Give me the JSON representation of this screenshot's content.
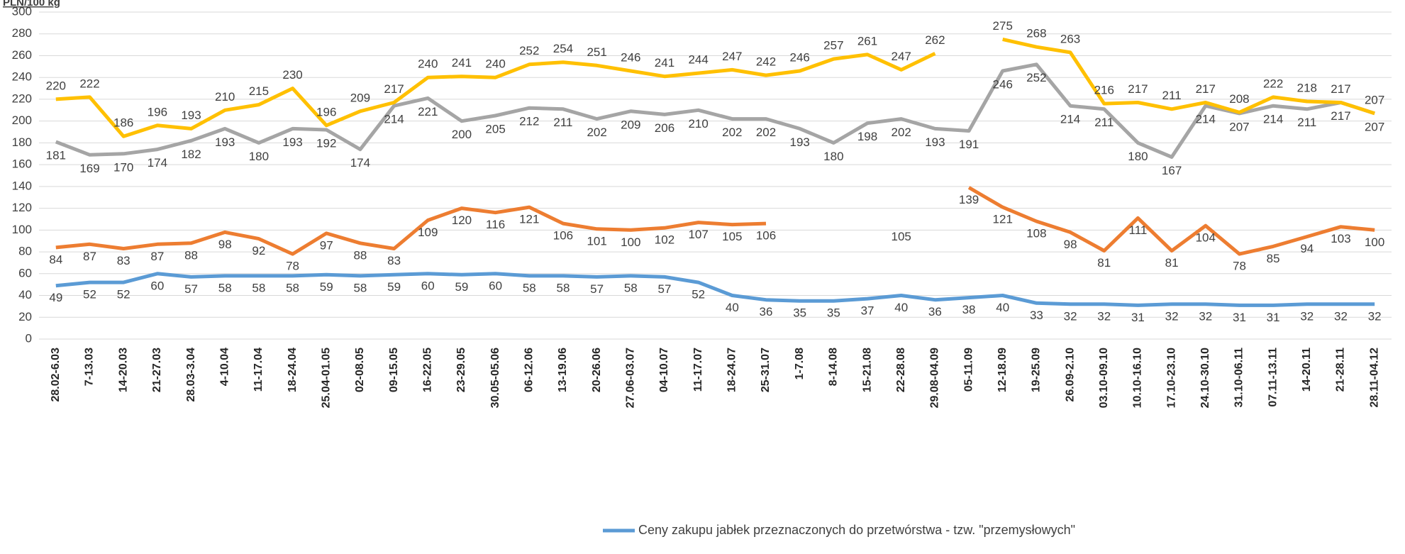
{
  "chart_data": {
    "type": "line",
    "y_label": "PLN/100 kg",
    "categories": [
      "28.02-6.03",
      "7-13.03",
      "14-20.03",
      "21-27.03",
      "28.03-3.04",
      "4-10.04",
      "11-17.04",
      "18-24.04",
      "25.04-01.05",
      "02-08.05",
      "09-15.05",
      "16-22.05",
      "23-29.05",
      "30.05-05.06",
      "06-12.06",
      "13-19.06",
      "20-26.06",
      "27.06-03.07",
      "04-10.07",
      "11-17.07",
      "18-24.07",
      "25-31.07",
      "1-7.08",
      "8-14.08",
      "15-21.08",
      "22-28.08",
      "29.08-04.09",
      "05-11.09",
      "12-18.09",
      "19-25.09",
      "26.09-2.10",
      "03.10-09.10",
      "10.10-16.10",
      "17.10-23.10",
      "24.10-30.10",
      "31.10-06.11",
      "07.11-13.11",
      "14-20.11",
      "21-28.11",
      "28.11-04.12"
    ],
    "series": [
      {
        "name": "Ceny zakupu jabłek przeznaczonych do przetwórstwa - tzw. \"przemysłowych\"",
        "color": "#5b9bd5",
        "values": [
          49,
          52,
          52,
          60,
          57,
          58,
          58,
          58,
          59,
          58,
          59,
          60,
          59,
          60,
          58,
          58,
          57,
          58,
          57,
          52,
          40,
          36,
          35,
          35,
          37,
          40,
          36,
          38,
          40,
          33,
          32,
          32,
          31,
          32,
          32,
          31,
          31,
          32,
          32,
          32
        ]
      },
      {
        "color": "#ed7d31",
        "values": [
          84,
          87,
          83,
          87,
          88,
          98,
          92,
          78,
          97,
          88,
          83,
          109,
          120,
          116,
          121,
          106,
          101,
          100,
          102,
          107,
          105,
          106,
          null,
          null,
          null,
          105,
          null,
          139,
          121,
          108,
          98,
          81,
          111,
          81,
          104,
          78,
          85,
          94,
          103,
          100
        ]
      },
      {
        "color": "#a5a5a5",
        "values": [
          181,
          169,
          170,
          174,
          182,
          193,
          180,
          193,
          192,
          174,
          214,
          221,
          200,
          205,
          212,
          211,
          202,
          209,
          206,
          210,
          202,
          202,
          193,
          180,
          198,
          202,
          193,
          191,
          246,
          252,
          214,
          211,
          180,
          167,
          214,
          207,
          214,
          211,
          217,
          207
        ]
      },
      {
        "color": "#ffc000",
        "values": [
          220,
          222,
          186,
          196,
          193,
          210,
          215,
          230,
          196,
          209,
          217,
          240,
          241,
          240,
          252,
          254,
          251,
          246,
          241,
          244,
          247,
          242,
          246,
          257,
          261,
          247,
          262,
          null,
          275,
          268,
          263,
          216,
          217,
          211,
          217,
          208,
          222,
          218,
          217,
          207
        ]
      }
    ],
    "ylim": [
      0,
      300
    ],
    "yticks": [
      0,
      20,
      40,
      60,
      80,
      100,
      120,
      140,
      160,
      180,
      200,
      220,
      240,
      260,
      280,
      300
    ],
    "grid": true,
    "legend": "bottom"
  }
}
